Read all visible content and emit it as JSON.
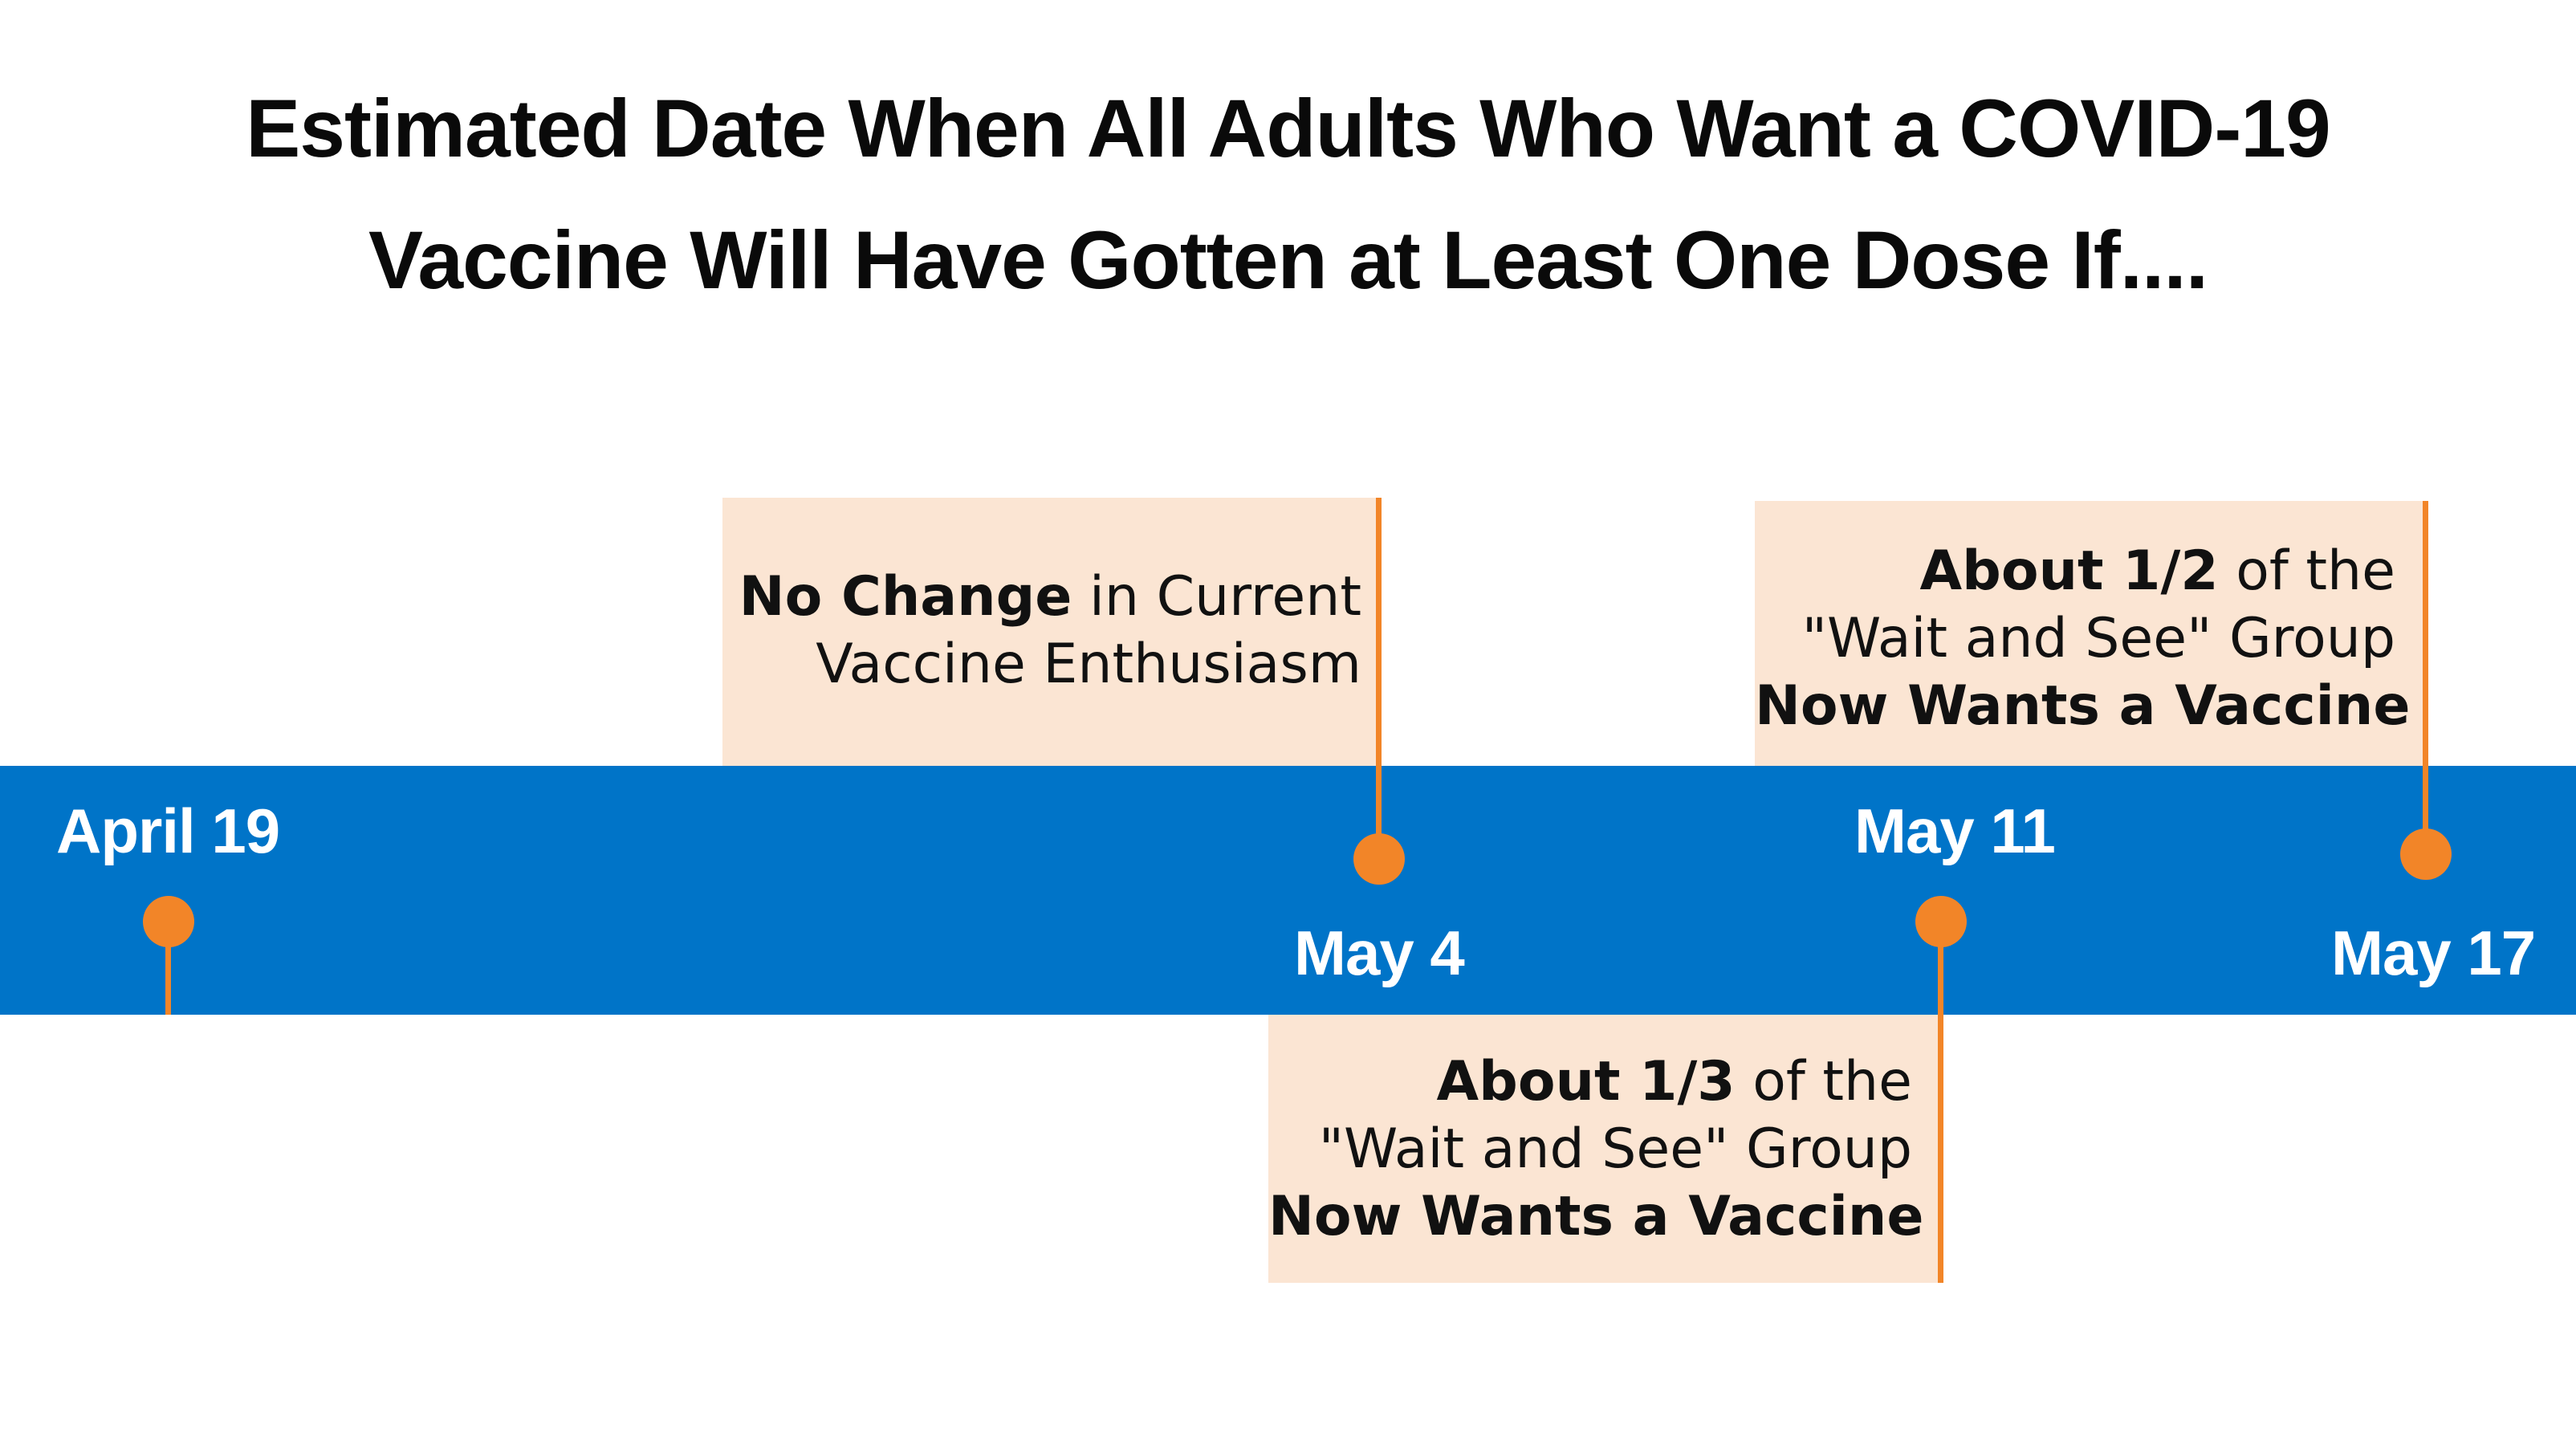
{
  "title": {
    "line1": "Estimated Date When All Adults Who Want a COVID-19",
    "line2": "Vaccine Will Have Gotten at Least One Dose If...."
  },
  "timeline": {
    "dates": [
      "April 19",
      "May 4",
      "May 11",
      "May 17"
    ],
    "marker_color": "#f28528",
    "band_color": "#0074c8",
    "callout_color": "#fbe5d3"
  },
  "scenarios": [
    {
      "date": "May 4",
      "bold1": "No Change",
      "text1": " in Current",
      "text2": "Vaccine Enthusiasm"
    },
    {
      "date": "May 11",
      "bold1": "About 1/3",
      "text1": " of the",
      "text2": "\"Wait and See\" Group",
      "bold3": "Now Wants a Vaccine"
    },
    {
      "date": "May 17",
      "bold1": "About 1/2",
      "text1": " of the",
      "text2": "\"Wait and See\" Group",
      "bold3": "Now Wants a Vaccine"
    }
  ]
}
